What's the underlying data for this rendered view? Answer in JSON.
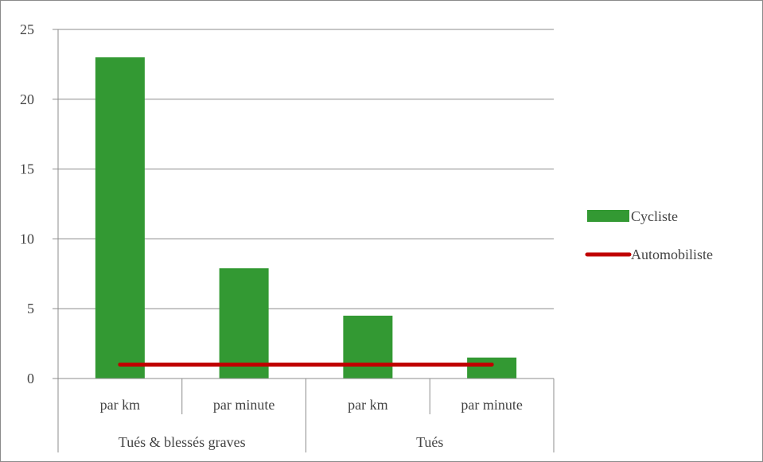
{
  "chart_data": {
    "type": "bar",
    "title": "",
    "xlabel": "",
    "ylabel": "",
    "ylim": [
      0,
      25
    ],
    "yticks": [
      0,
      5,
      10,
      15,
      20,
      25
    ],
    "grid": true,
    "legend_position": "right",
    "categories": [
      "par km",
      "par minute",
      "par km",
      "par minute"
    ],
    "groups": [
      {
        "label": "Tués & blessés graves",
        "span": 2
      },
      {
        "label": "Tués",
        "span": 2
      }
    ],
    "series": [
      {
        "name": "Cycliste",
        "type": "bar",
        "color": "#339933",
        "values": [
          23,
          7.9,
          4.5,
          1.5
        ]
      },
      {
        "name": "Automobiliste",
        "type": "line",
        "color": "#c00000",
        "values": [
          1,
          1,
          1,
          1
        ]
      }
    ]
  }
}
